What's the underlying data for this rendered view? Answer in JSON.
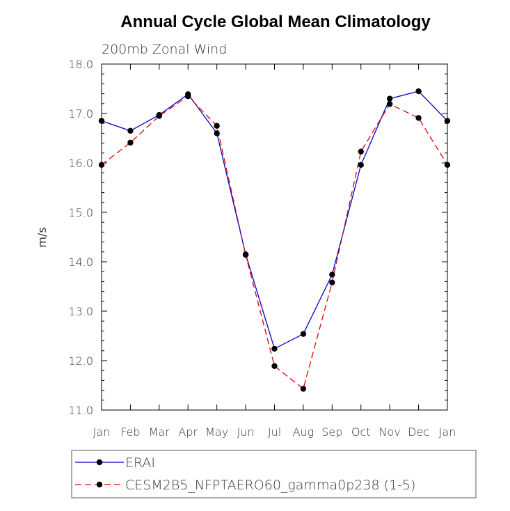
{
  "chart_data": {
    "type": "line",
    "title": "Annual Cycle Global Mean Climatology",
    "subtitle": "200mb Zonal Wind",
    "xlabel": "",
    "ylabel": "m/s",
    "ylim": [
      11.0,
      18.0
    ],
    "yticks": [
      "11.0",
      "12.0",
      "13.0",
      "14.0",
      "15.0",
      "16.0",
      "17.0",
      "18.0"
    ],
    "categories": [
      "Jan",
      "Feb",
      "Mar",
      "Apr",
      "May",
      "Jun",
      "Jul",
      "Aug",
      "Sep",
      "Oct",
      "Nov",
      "Dec",
      "Jan"
    ],
    "series": [
      {
        "name": "ERAI",
        "color": "#0000cc",
        "dash": "solid",
        "values": [
          16.85,
          16.65,
          16.97,
          17.39,
          16.6,
          14.15,
          12.24,
          12.54,
          13.74,
          15.96,
          17.3,
          17.45,
          16.85
        ]
      },
      {
        "name": "CESM2B5_NFPTAERO60_gamma0p238 (1-5)",
        "color": "#e00000",
        "dash": "dashed",
        "values": [
          15.96,
          16.41,
          16.95,
          17.35,
          16.75,
          14.14,
          11.89,
          11.43,
          13.58,
          16.23,
          17.19,
          16.91,
          15.96
        ]
      }
    ],
    "legend": "bottom"
  }
}
